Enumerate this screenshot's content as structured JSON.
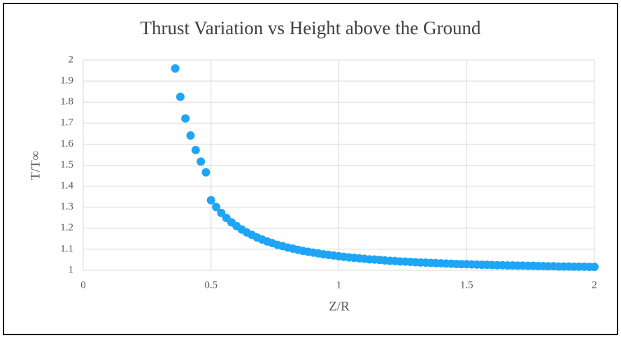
{
  "chart_data": {
    "type": "scatter",
    "title": "Thrust Variation vs Height above the Ground",
    "x_label": "Z/R",
    "y_label": "T/T∞",
    "xlim": [
      0,
      2
    ],
    "ylim": [
      1,
      2
    ],
    "xticks": [
      0,
      0.5,
      1,
      1.5,
      2
    ],
    "yticks": [
      1,
      1.1,
      1.2,
      1.3,
      1.4,
      1.5,
      1.6,
      1.7,
      1.8,
      1.9,
      2
    ],
    "grid": true,
    "series": [
      {
        "color": "#1ea5f5",
        "x": [
          0.36,
          0.38,
          0.4,
          0.42,
          0.44,
          0.46,
          0.48,
          0.5,
          0.52,
          0.54,
          0.56,
          0.58,
          0.6,
          0.62,
          0.64,
          0.66,
          0.68,
          0.7,
          0.72,
          0.74,
          0.76,
          0.78,
          0.8,
          0.82,
          0.84,
          0.86,
          0.88,
          0.9,
          0.92,
          0.94,
          0.96,
          0.98,
          1.0,
          1.02,
          1.04,
          1.06,
          1.08,
          1.1,
          1.12,
          1.14,
          1.16,
          1.18,
          1.2,
          1.22,
          1.24,
          1.26,
          1.28,
          1.3,
          1.32,
          1.34,
          1.36,
          1.38,
          1.4,
          1.42,
          1.44,
          1.46,
          1.48,
          1.5,
          1.52,
          1.54,
          1.56,
          1.58,
          1.6,
          1.62,
          1.64,
          1.66,
          1.68,
          1.7,
          1.72,
          1.74,
          1.76,
          1.78,
          1.8,
          1.82,
          1.84,
          1.86,
          1.88,
          1.9,
          1.92,
          1.94,
          1.96,
          1.98,
          2.0
        ],
        "values": [
          1.96,
          1.825,
          1.722,
          1.641,
          1.572,
          1.517,
          1.466,
          1.333,
          1.301,
          1.273,
          1.249,
          1.228,
          1.21,
          1.194,
          1.18,
          1.168,
          1.156,
          1.146,
          1.137,
          1.129,
          1.121,
          1.115,
          1.108,
          1.103,
          1.097,
          1.092,
          1.088,
          1.084,
          1.08,
          1.076,
          1.073,
          1.07,
          1.067,
          1.064,
          1.061,
          1.059,
          1.057,
          1.055,
          1.052,
          1.051,
          1.049,
          1.047,
          1.045,
          1.044,
          1.042,
          1.041,
          1.04,
          1.038,
          1.037,
          1.036,
          1.035,
          1.034,
          1.033,
          1.032,
          1.031,
          1.03,
          1.029,
          1.029,
          1.028,
          1.027,
          1.026,
          1.026,
          1.025,
          1.024,
          1.024,
          1.023,
          1.023,
          1.022,
          1.022,
          1.021,
          1.021,
          1.02,
          1.02,
          1.019,
          1.019,
          1.018,
          1.018,
          1.018,
          1.017,
          1.017,
          1.017,
          1.016,
          1.016
        ]
      }
    ]
  }
}
